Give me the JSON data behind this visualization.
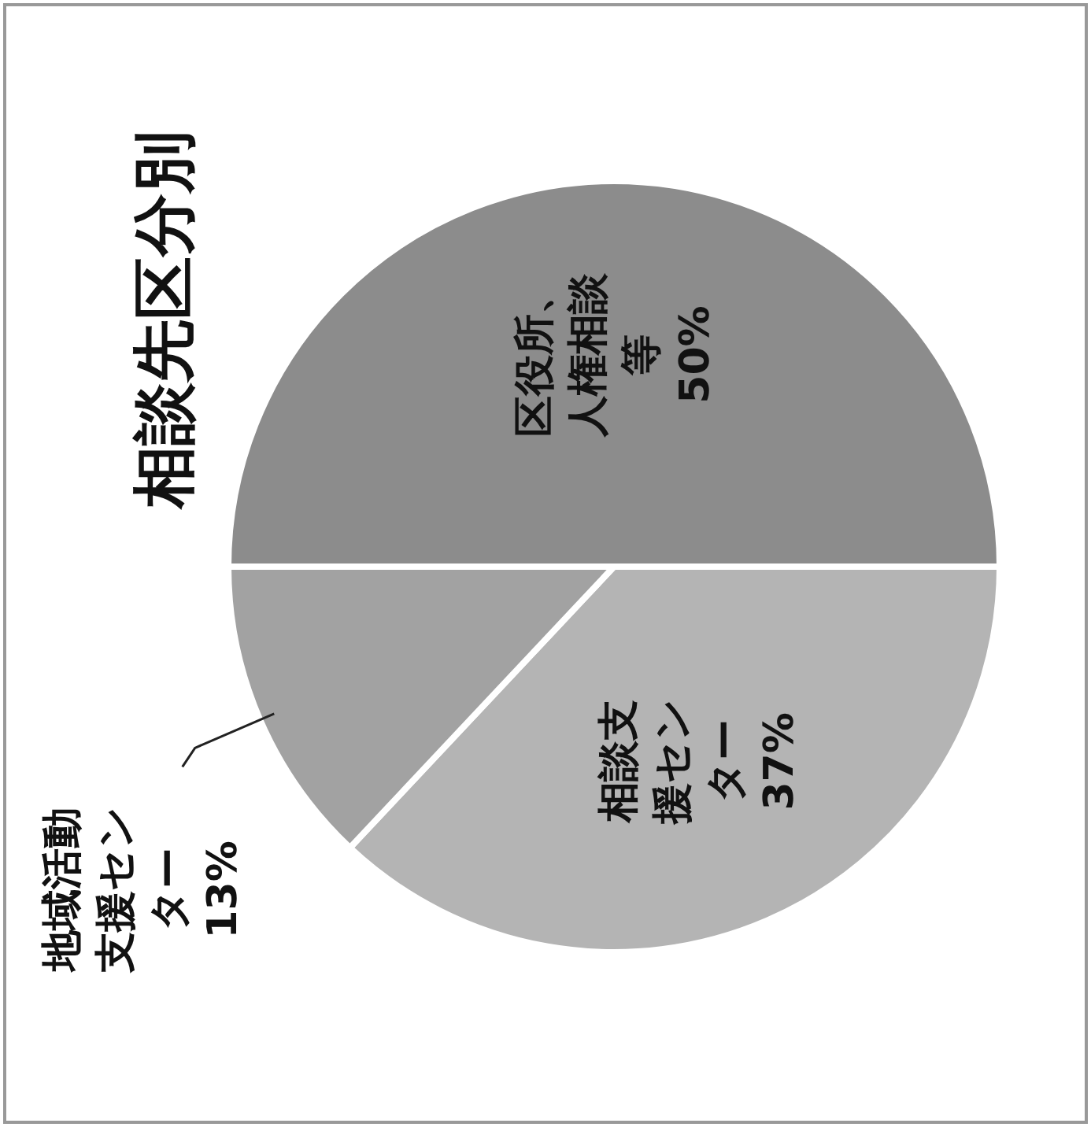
{
  "chart_data": {
    "type": "pie",
    "title": "相談先区分別",
    "categories": [
      "区役所、人権相談等",
      "相談支援センター",
      "地域活動支援センター"
    ],
    "values": [
      50,
      37,
      13
    ],
    "colors": [
      "#8c8c8c",
      "#b4b4b4",
      "#a2a2a2"
    ],
    "value_labels": [
      "50%",
      "37%",
      "13%"
    ]
  }
}
